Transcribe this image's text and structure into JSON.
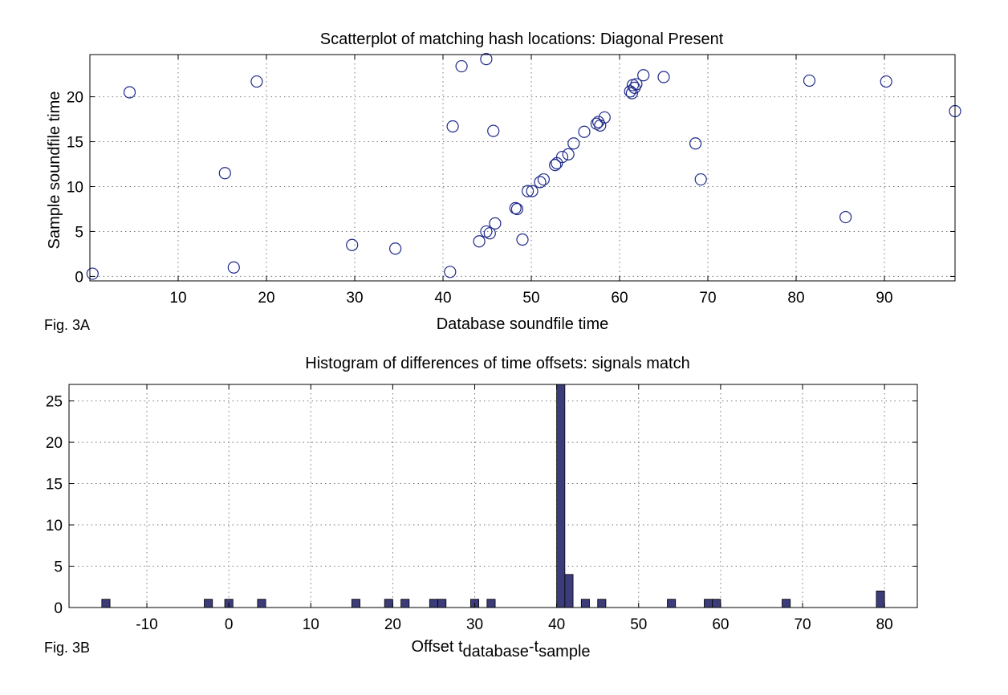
{
  "chart_data": [
    {
      "type": "scatter",
      "title": "Scatterplot of matching hash locations:  Diagonal Present",
      "xlabel": "Database soundfile time",
      "ylabel": "Sample soundfile time",
      "figure_label": "Fig. 3A",
      "xlim": [
        0,
        98
      ],
      "ylim": [
        -0.5,
        24.7
      ],
      "xticks": [
        10,
        20,
        30,
        40,
        50,
        60,
        70,
        80,
        90
      ],
      "yticks": [
        0,
        5,
        10,
        15,
        20
      ],
      "grid": true,
      "marker": "open-circle",
      "marker_color": "#1f2a8a",
      "points": [
        [
          0.3,
          0.3
        ],
        [
          4.5,
          20.5
        ],
        [
          15.3,
          11.5
        ],
        [
          16.3,
          1.0
        ],
        [
          18.9,
          21.7
        ],
        [
          29.7,
          3.5
        ],
        [
          34.6,
          3.1
        ],
        [
          40.8,
          0.5
        ],
        [
          41.1,
          16.7
        ],
        [
          42.1,
          23.4
        ],
        [
          44.1,
          3.9
        ],
        [
          44.9,
          24.2
        ],
        [
          44.9,
          5.0
        ],
        [
          45.3,
          4.8
        ],
        [
          45.7,
          16.2
        ],
        [
          45.9,
          5.9
        ],
        [
          48.2,
          7.6
        ],
        [
          48.4,
          7.5
        ],
        [
          49.0,
          4.1
        ],
        [
          49.6,
          9.5
        ],
        [
          50.1,
          9.5
        ],
        [
          51.0,
          10.5
        ],
        [
          51.4,
          10.8
        ],
        [
          52.7,
          12.4
        ],
        [
          52.9,
          12.6
        ],
        [
          53.5,
          13.3
        ],
        [
          54.2,
          13.6
        ],
        [
          54.8,
          14.8
        ],
        [
          56.0,
          16.1
        ],
        [
          57.4,
          17.0
        ],
        [
          57.6,
          17.2
        ],
        [
          57.8,
          16.8
        ],
        [
          58.3,
          17.7
        ],
        [
          61.2,
          20.6
        ],
        [
          61.4,
          20.4
        ],
        [
          61.5,
          21.3
        ],
        [
          61.7,
          21.0
        ],
        [
          61.9,
          21.4
        ],
        [
          62.7,
          22.4
        ],
        [
          65.0,
          22.2
        ],
        [
          68.6,
          14.8
        ],
        [
          69.2,
          10.8
        ],
        [
          81.5,
          21.8
        ],
        [
          85.6,
          6.6
        ],
        [
          90.2,
          21.7
        ],
        [
          98.0,
          18.4
        ]
      ]
    },
    {
      "type": "bar",
      "title": "Histogram of differences of time offsets: signals match",
      "xlabel_base": "Offset t",
      "xlabel_sub1": "database",
      "xlabel_dash": "-t",
      "xlabel_sub2": "sample",
      "ylabel": "",
      "figure_label": "Fig. 3B",
      "xlim": [
        -19.5,
        84
      ],
      "ylim": [
        0,
        27
      ],
      "xticks": [
        -10,
        0,
        10,
        20,
        30,
        40,
        50,
        60,
        70,
        80
      ],
      "yticks": [
        0,
        5,
        10,
        15,
        20,
        25
      ],
      "grid": true,
      "bar_color": "#3c3c7a",
      "bin_width": 1,
      "bins": [
        [
          -15,
          1
        ],
        [
          -2.5,
          1
        ],
        [
          0,
          1
        ],
        [
          4,
          1
        ],
        [
          15.5,
          1
        ],
        [
          19.5,
          1
        ],
        [
          21.5,
          1
        ],
        [
          25,
          1
        ],
        [
          26,
          1
        ],
        [
          30,
          1
        ],
        [
          32,
          1
        ],
        [
          40.5,
          27
        ],
        [
          41.5,
          4
        ],
        [
          43.5,
          1
        ],
        [
          45.5,
          1
        ],
        [
          54,
          1
        ],
        [
          58.5,
          1
        ],
        [
          59.5,
          1
        ],
        [
          68,
          1
        ],
        [
          79.5,
          2
        ]
      ]
    }
  ]
}
